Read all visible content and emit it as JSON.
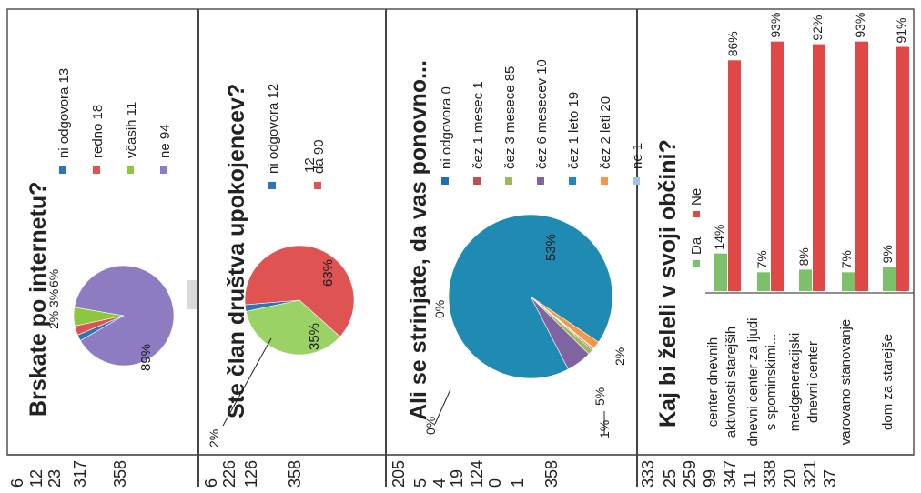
{
  "panels": [
    {
      "title": "Brskate po internetu?",
      "slices": [
        {
          "label": "ni odgovora 13",
          "percent": 2,
          "display": "2%",
          "color": "#2e75b6"
        },
        {
          "label": "redno 18",
          "percent": 3,
          "display": "3%",
          "color": "#e05353"
        },
        {
          "label": "včasih 11",
          "percent": 6,
          "display": "6%",
          "color": "#8dc63f"
        },
        {
          "label": "ne 94",
          "percent": 89,
          "display": "89%",
          "color": "#8e7cc3"
        }
      ],
      "side_numbers": [
        "6",
        "12",
        "23",
        "317",
        "358"
      ]
    },
    {
      "title": "Ste član društva upokojencev?",
      "slices": [
        {
          "label": "ni odgovora 12",
          "percent": 2,
          "display": "2%",
          "color": "#2e75b6"
        },
        {
          "label": "da 90",
          "percent": 63,
          "display": "63%",
          "color": "#e05353"
        },
        {
          "label": "",
          "percent": 35,
          "display": "35%",
          "color": "#9bd266"
        }
      ],
      "side_numbers": [
        "6",
        "226",
        "126",
        "358"
      ]
    },
    {
      "title": "Ali se strinjate, da vas ponovno...",
      "slices": [
        {
          "label": "ni odgovora 0",
          "percent": 0,
          "display": "0%",
          "color": "#1f6fa8"
        },
        {
          "label": "čez 1 mesec 1",
          "percent": 0.3,
          "display": "",
          "color": "#c0504d"
        },
        {
          "label": "čez 3 mesece 85",
          "percent": 1,
          "display": "1%",
          "color": "#9bbb59"
        },
        {
          "label": "čez 6 mesecev 10",
          "percent": 5,
          "display": "5%",
          "color": "#8064a2"
        },
        {
          "label": "čez 1 leto 19",
          "percent": 92,
          "display": "",
          "color": "#1f8bb3"
        },
        {
          "label": "čez 2 leti 20",
          "percent": 1.5,
          "display": "2%",
          "color": "#f79646"
        },
        {
          "label": "ne 1",
          "percent": 0.2,
          "display": "",
          "color": "#9dc3e6"
        }
      ],
      "inner_labels": [
        "0%",
        "53%"
      ],
      "side_numbers": [
        "205",
        "5",
        "4",
        "19",
        "124",
        "0",
        "1",
        "358"
      ]
    },
    {
      "title": "Kaj bi želeli v svoji občini?",
      "side_numbers": [
        "333",
        "25",
        "259",
        "99",
        "347",
        "11",
        "338",
        "20",
        "321",
        "37"
      ]
    }
  ],
  "chart_data": [
    {
      "type": "pie",
      "title": "Brskate po internetu?",
      "labels": [
        "ni odgovora 13",
        "redno 18",
        "včasih 11",
        "ne 94"
      ],
      "values": [
        2,
        3,
        6,
        89
      ]
    },
    {
      "type": "pie",
      "title": "Ste član društva upokojencev?",
      "labels": [
        "ni odgovora 12",
        "da 90",
        ""
      ],
      "values": [
        2,
        63,
        35
      ]
    },
    {
      "type": "pie",
      "title": "Ali se strinjate, da vas ponovno...",
      "labels": [
        "ni odgovora 0",
        "čez 1 mesec 1",
        "čez 3 mesece 85",
        "čez 6 mesecev 10",
        "čez 1 leto 19",
        "čez 2 leti 20",
        "ne 1"
      ],
      "values": [
        0,
        0.3,
        1,
        5,
        92,
        1.5,
        0.2
      ]
    },
    {
      "type": "bar",
      "title": "Kaj bi želeli v svoji občini?",
      "categories": [
        "center dnevnih aktivnosti starejših",
        "dnevni center za ljudi s spominskimi...",
        "medgeneracijski dnevni center",
        "varovano stanovanje",
        "dom za starejše"
      ],
      "series": [
        {
          "name": "Da",
          "values": [
            14,
            7,
            8,
            7,
            9
          ],
          "labels": [
            "14%",
            "7%",
            "8%",
            "7%",
            "9%"
          ],
          "color": "#7cc16a"
        },
        {
          "name": "Ne",
          "values": [
            86,
            93,
            92,
            93,
            91
          ],
          "labels": [
            "86%",
            "93%",
            "92%",
            "93%",
            "91%"
          ],
          "color": "#e04848"
        }
      ],
      "ylim": [
        0,
        100
      ]
    }
  ],
  "colors": {
    "frame": "#555555",
    "text": "#222222",
    "accent": "#cccccc"
  }
}
